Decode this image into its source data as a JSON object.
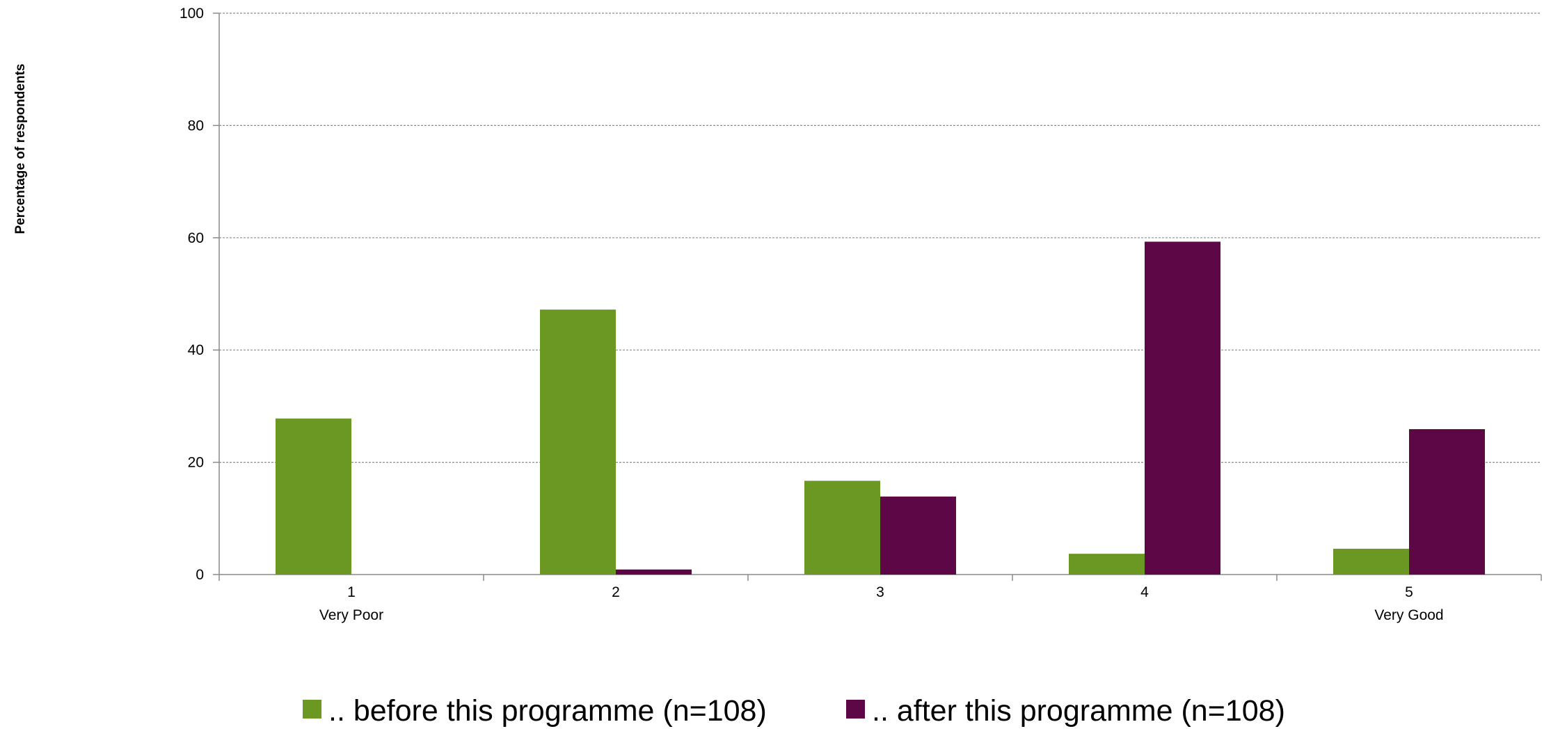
{
  "chart_data": {
    "type": "bar",
    "title": "",
    "xlabel": "",
    "ylabel": "Percentage of respondents",
    "ylim": [
      0,
      100
    ],
    "yticks": [
      0,
      20,
      40,
      60,
      80,
      100
    ],
    "grid": "horizontal dotted",
    "legend_position": "bottom",
    "categories": [
      "1",
      "2",
      "3",
      "4",
      "5"
    ],
    "category_sublabels": [
      "Very Poor",
      "",
      "",
      "",
      "Very Good"
    ],
    "series": [
      {
        "name": ".. before this programme (n=108)",
        "color": "#6b9822",
        "values": [
          27.8,
          47.2,
          16.7,
          3.7,
          4.6
        ]
      },
      {
        "name": ".. after this programme (n=108)",
        "color": "#5e0746",
        "values": [
          0,
          0.9,
          13.9,
          59.3,
          25.9
        ]
      }
    ]
  }
}
